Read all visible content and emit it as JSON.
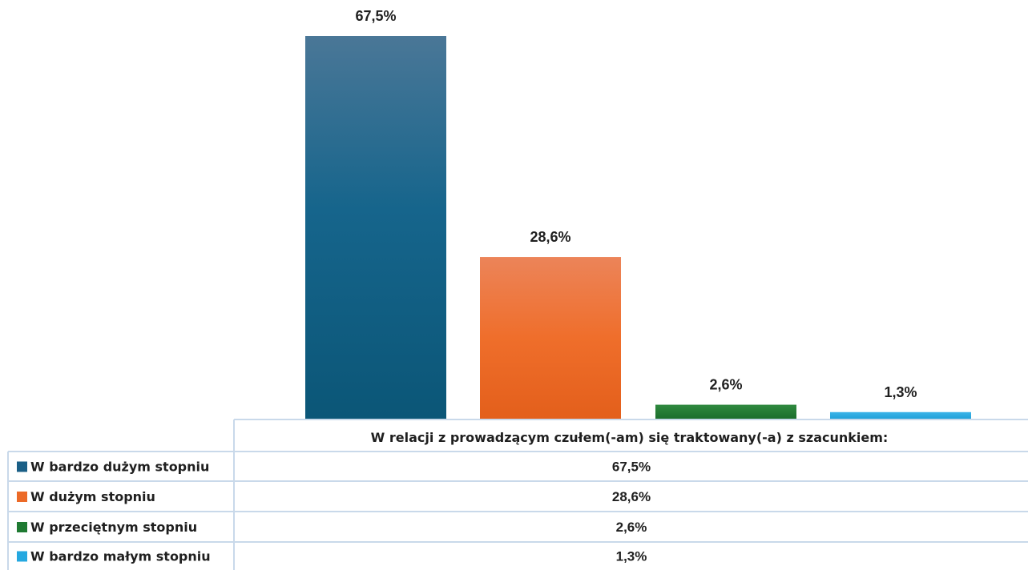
{
  "chart_data": {
    "type": "bar",
    "title": "W relacji z prowadzącym czułem(-am) się traktowany(-a) z szacunkiem:",
    "categories": [
      "W bardzo dużym stopniu",
      "W dużym stopniu",
      "W przeciętnym stopniu",
      "W bardzo małym stopniu"
    ],
    "values": [
      67.5,
      28.6,
      2.6,
      1.3
    ],
    "value_labels": [
      "67,5%",
      "28,6%",
      "2,6%",
      "1,3%"
    ],
    "colors": [
      "#1a5f86",
      "#ec6a27",
      "#1f7a32",
      "#25a8e0"
    ],
    "ylim": [
      0,
      67.5
    ],
    "grid": false,
    "legend": "data-table-below"
  }
}
